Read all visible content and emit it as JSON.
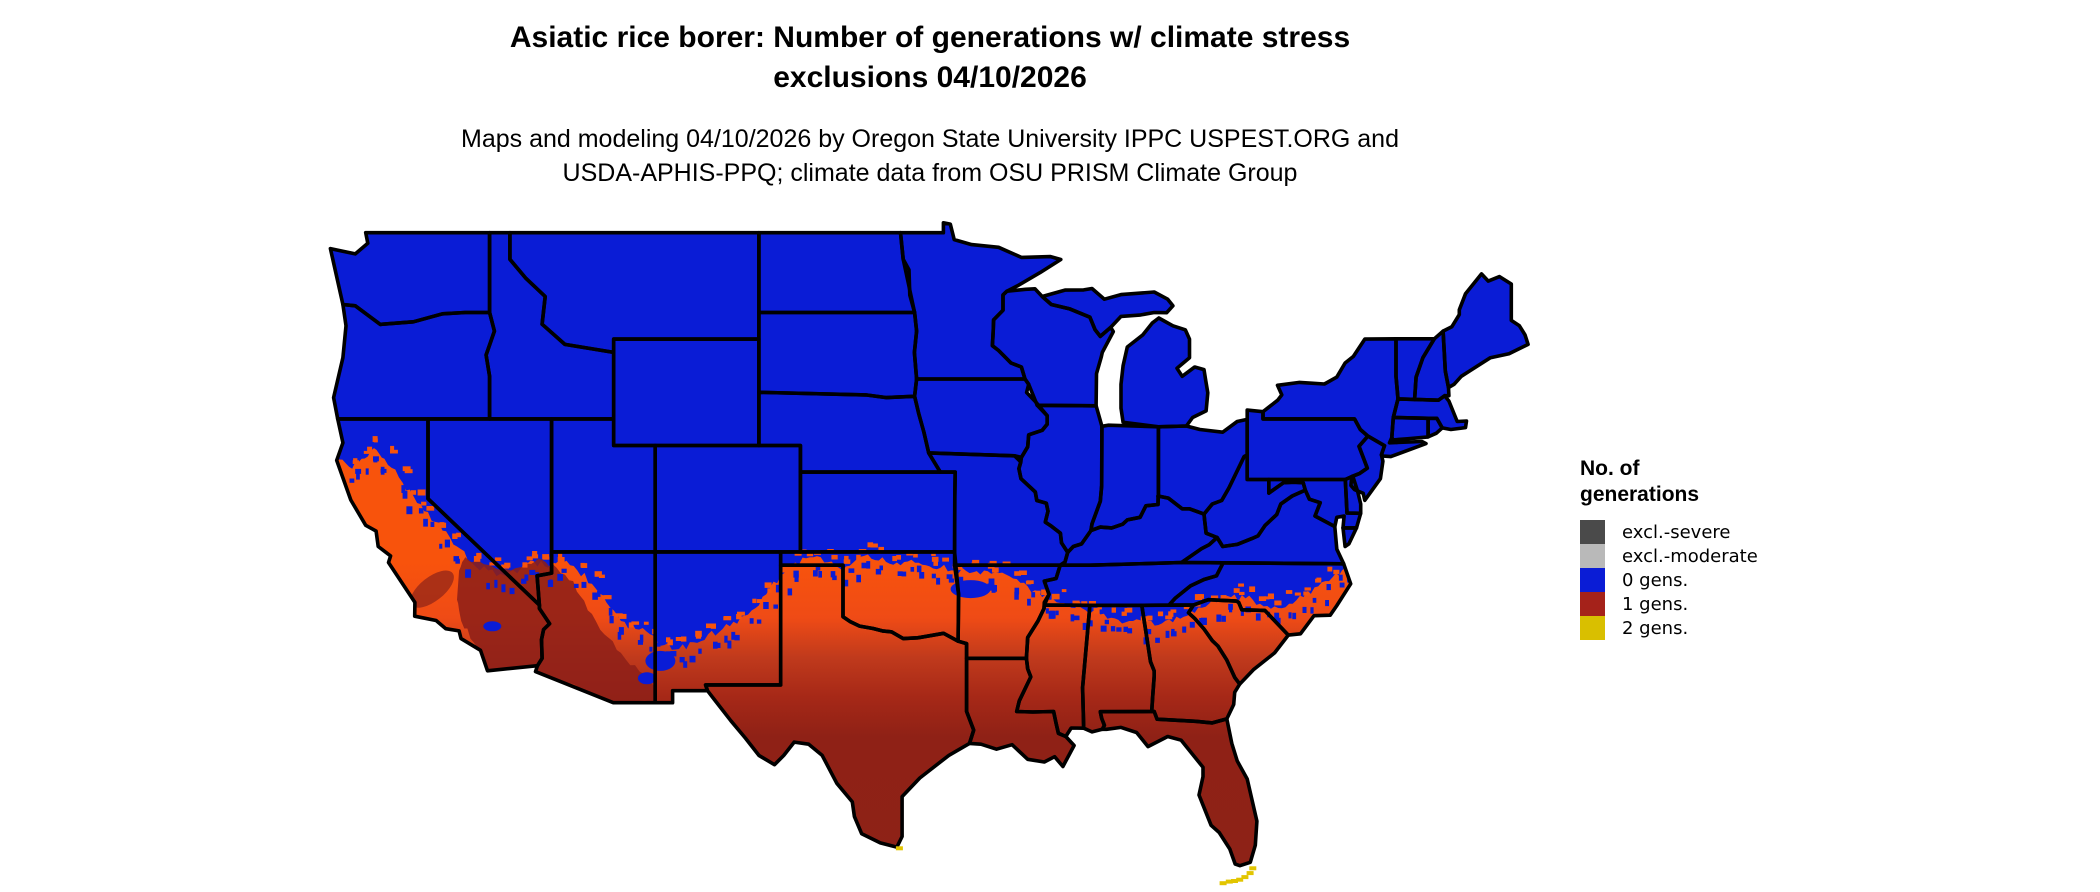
{
  "header": {
    "title_line1": "Asiatic rice borer: Number of generations w/ climate stress",
    "title_line2": "exclusions 04/10/2026",
    "subtitle_line1": "Maps and modeling 04/10/2026 by Oregon State University IPPC USPEST.ORG and",
    "subtitle_line2": "USDA-APHIS-PPQ; climate data from OSU PRISM Climate Group"
  },
  "legend": {
    "title_line1": "No. of",
    "title_line2": "generations",
    "items": [
      {
        "label": "excl.-severe",
        "color": "#4a4a4a"
      },
      {
        "label": "excl.-moderate",
        "color": "#b9b9b9"
      },
      {
        "label": "0 gens.",
        "color": "#0a1cd6"
      },
      {
        "label": "1 gens.",
        "color": "#a5221a"
      },
      {
        "label": "2 gens.",
        "color": "#d9bf00"
      }
    ]
  },
  "map": {
    "date_shown": "04/10/2026",
    "colors": {
      "zero_generations": "#0a1cd6",
      "one_generation_north_edge": "#f8530c",
      "one_generation_mid": "#c03a1c",
      "one_generation_south": "#8e2217",
      "desert_dark_red": "#8e2018",
      "two_generations": "#e2c500",
      "state_border": "#000000",
      "background": "#ffffff"
    }
  }
}
